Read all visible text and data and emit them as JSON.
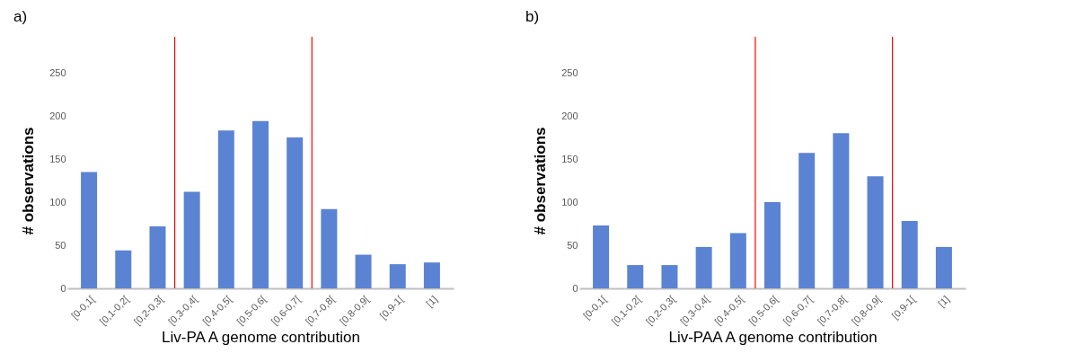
{
  "chart_data": [
    {
      "type": "bar",
      "title": "a)",
      "xlabel": "Liv-PA A genome contribution",
      "ylabel": "# observations",
      "categories": [
        "[0-0,1[",
        "[0,1-0,2[",
        "[0,2-0,3[",
        "[0,3-0,4[",
        "[0,4-0,5[",
        "[0,5-0,6[",
        "[0,6-0,7[",
        "[0,7-0,8[",
        "[0,8-0,9[",
        "[0,9-1[",
        "[1]"
      ],
      "values": [
        135,
        44,
        72,
        112,
        183,
        194,
        175,
        92,
        39,
        28,
        30
      ],
      "color": "#5b83d3",
      "ylim": [
        0,
        250
      ],
      "yticks": [
        0,
        50,
        100,
        150,
        200,
        250
      ],
      "grid": false,
      "ref_lines": [
        {
          "axis": "x",
          "value": "[0,3-0,4[",
          "color": "#ff0000"
        },
        {
          "axis": "x",
          "value": "[0,7-0,8[",
          "color": "#ff0000"
        }
      ]
    },
    {
      "type": "bar",
      "title": "b)",
      "xlabel": "Liv-PAA A genome contribution",
      "ylabel": "# observations",
      "categories": [
        "[0-0,1[",
        "[0,1-0,2[",
        "[0,2-0,3[",
        "[0,3-0,4[",
        "[0,4-0,5[",
        "[0,5-0,6[",
        "[0,6-0,7[",
        "[0,7-0,8[",
        "[0,8-0,9[",
        "[0,9-1[",
        "[1]"
      ],
      "values": [
        73,
        27,
        27,
        48,
        64,
        100,
        157,
        180,
        130,
        78,
        48
      ],
      "color": "#5b83d3",
      "ylim": [
        0,
        250
      ],
      "yticks": [
        0,
        50,
        100,
        150,
        200,
        250
      ],
      "grid": false,
      "ref_lines": [
        {
          "axis": "x",
          "value": "[0,5-0,6[",
          "color": "#ff0000"
        },
        {
          "axis": "x",
          "value": "[0,9-1[",
          "color": "#ff0000"
        }
      ]
    }
  ]
}
